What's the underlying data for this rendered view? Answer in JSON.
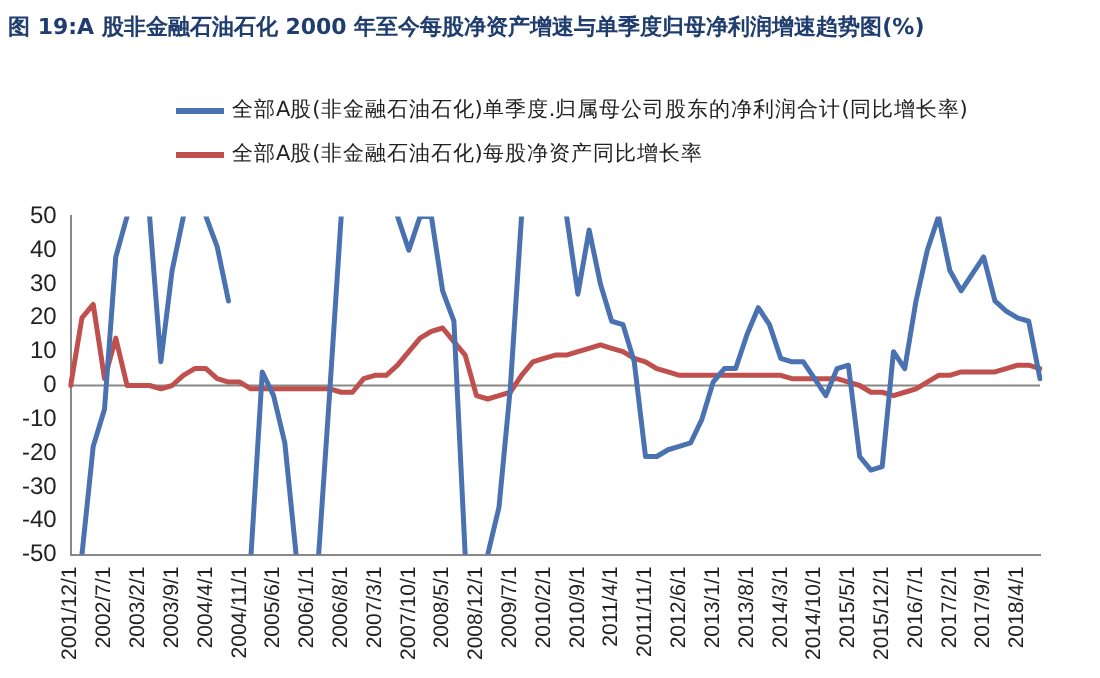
{
  "chart_data": {
    "type": "line",
    "title": "图 19:A 股非金融石油石化 2000 年至今每股净资产增速与单季度归母净利润增速趋势图(%)",
    "categories": [
      "2001/12/1",
      null,
      null,
      "2002/7/1",
      null,
      null,
      "2003/2/1",
      null,
      null,
      "2003/9/1",
      null,
      null,
      "2004/4/1",
      null,
      null,
      "2004/11/1",
      null,
      null,
      "2005/6/1",
      null,
      null,
      "2006/1/1",
      null,
      null,
      "2006/8/1",
      null,
      null,
      "2007/3/1",
      null,
      null,
      "2007/10/1",
      null,
      null,
      "2008/5/1",
      null,
      null,
      "2008/12/1",
      null,
      null,
      "2009/7/1",
      null,
      null,
      "2010/2/1",
      null,
      null,
      "2010/9/1",
      null,
      null,
      "2011/4/1",
      null,
      null,
      "2011/11/1",
      null,
      null,
      "2012/6/1",
      null,
      null,
      "2013/1/1",
      null,
      null,
      "2013/8/1",
      null,
      null,
      "2014/3/1",
      null,
      null,
      "2014/10/1",
      null,
      null,
      "2015/5/1",
      null,
      null,
      "2015/12/1",
      null,
      null,
      "2016/7/1",
      null,
      null,
      "2017/2/1",
      null,
      null,
      "2017/9/1",
      null,
      null,
      "2018/4/1",
      null,
      null
    ],
    "series": [
      {
        "name": "全部A股(非金融石油石化)单季度.归属母公司股东的净利润合计(同比增长率)",
        "color": "#4a72b0",
        "values": [
          null,
          -50,
          -18,
          -7,
          38,
          50,
          null,
          50,
          7,
          34,
          50,
          null,
          50,
          41,
          25,
          null,
          -50,
          4,
          -3,
          -17,
          -50,
          null,
          -50,
          -1,
          50,
          null,
          null,
          null,
          null,
          50,
          40,
          50,
          50,
          28,
          19,
          -50,
          null,
          -50,
          -36,
          -1,
          50,
          null,
          null,
          null,
          50,
          27,
          46,
          30,
          19,
          18,
          7,
          -21,
          -21,
          -19,
          -18,
          -17,
          -10,
          1,
          5,
          5,
          15,
          23,
          18,
          8,
          7,
          7,
          2,
          -3,
          5,
          6,
          -21,
          -25,
          -24,
          10,
          5,
          25,
          40,
          50,
          34,
          28,
          33,
          38,
          25,
          22,
          20,
          19,
          2
        ]
      },
      {
        "name": "全部A股(非金融石油石化)每股净资产同比增长率",
        "color": "#c0504d",
        "values": [
          0,
          20,
          24,
          2,
          14,
          0,
          0,
          0,
          -1,
          0,
          3,
          5,
          5,
          2,
          1,
          1,
          -1,
          -1,
          -1,
          -1,
          -1,
          -1,
          -1,
          -1,
          -2,
          -2,
          2,
          3,
          3,
          6,
          10,
          14,
          16,
          17,
          13,
          9,
          -3,
          -4,
          -3,
          -2,
          3,
          7,
          8,
          9,
          9,
          10,
          11,
          12,
          11,
          10,
          8,
          7,
          5,
          4,
          3,
          3,
          3,
          3,
          3,
          3,
          3,
          3,
          3,
          3,
          2,
          2,
          2,
          2,
          2,
          1,
          0,
          -2,
          -2,
          -3,
          -2,
          -1,
          1,
          3,
          3,
          4,
          4,
          4,
          4,
          5,
          6,
          6,
          5
        ]
      }
    ],
    "ylim": [
      -50,
      50
    ],
    "yticks": [
      -50,
      -40,
      -30,
      -20,
      -10,
      0,
      10,
      20,
      30,
      40,
      50
    ],
    "grid": false,
    "ref_lines": [
      {
        "axis": "y",
        "value": 0,
        "color": "#888888"
      }
    ],
    "legend": "top",
    "marker": "none",
    "line_style": "solid"
  }
}
